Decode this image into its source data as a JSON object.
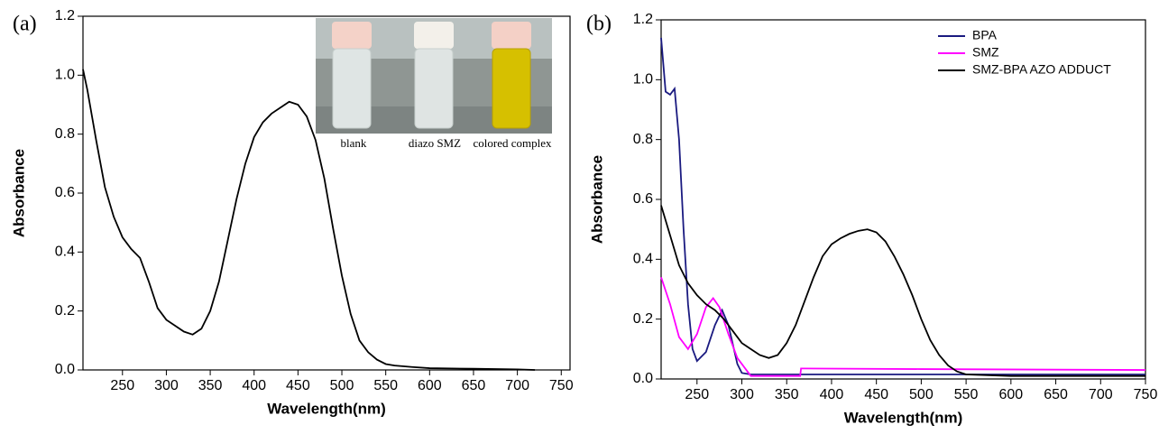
{
  "chart_data": [
    {
      "type": "line",
      "panel_label": "(a)",
      "x_label": "Wavelength(nm)",
      "y_label": "Absorbance",
      "inset_captions": [
        "blank",
        "diazo SMZ",
        "colored complex"
      ],
      "color": "#000000",
      "x": [
        205,
        210,
        220,
        230,
        240,
        250,
        260,
        270,
        280,
        290,
        300,
        310,
        320,
        330,
        340,
        350,
        360,
        370,
        380,
        390,
        400,
        410,
        420,
        430,
        440,
        450,
        460,
        470,
        480,
        490,
        500,
        510,
        520,
        530,
        540,
        550,
        560,
        580,
        600,
        650,
        700,
        720
      ],
      "values": [
        1.02,
        0.95,
        0.78,
        0.62,
        0.52,
        0.45,
        0.41,
        0.38,
        0.3,
        0.21,
        0.17,
        0.15,
        0.13,
        0.12,
        0.14,
        0.2,
        0.3,
        0.44,
        0.58,
        0.7,
        0.79,
        0.84,
        0.87,
        0.89,
        0.91,
        0.9,
        0.86,
        0.78,
        0.65,
        0.48,
        0.32,
        0.19,
        0.1,
        0.06,
        0.035,
        0.02,
        0.015,
        0.01,
        0.006,
        0.004,
        0.002,
        0.0
      ],
      "xlim": [
        205,
        760
      ],
      "ylim": [
        0,
        1.2
      ],
      "xticks": [
        250,
        300,
        350,
        400,
        450,
        500,
        550,
        600,
        650,
        700,
        750
      ],
      "yticks": [
        {
          "value": 0,
          "label": "0.0"
        },
        {
          "value": 0.2,
          "label": "0.2"
        },
        {
          "value": 0.4,
          "label": "0.4"
        },
        {
          "value": 0.6,
          "label": "0.6"
        },
        {
          "value": 0.8,
          "label": "0.8"
        },
        {
          "value": 1,
          "label": "1.0"
        },
        {
          "value": 1.2,
          "label": "1.2"
        }
      ]
    },
    {
      "type": "line",
      "panel_label": "(b)",
      "x_label": "Wavelength(nm)",
      "y_label": "Absorbance",
      "series": [
        {
          "name": "BPA",
          "color": "#1a1a80",
          "x": [
            210,
            215,
            220,
            225,
            230,
            235,
            240,
            245,
            250,
            260,
            270,
            278,
            285,
            295,
            300,
            310,
            350,
            365,
            400,
            500,
            600,
            750
          ],
          "values": [
            1.14,
            0.96,
            0.95,
            0.97,
            0.8,
            0.5,
            0.25,
            0.1,
            0.06,
            0.09,
            0.18,
            0.23,
            0.18,
            0.05,
            0.02,
            0.015,
            0.015,
            0.015,
            0.015,
            0.015,
            0.015,
            0.015
          ]
        },
        {
          "name": "SMZ",
          "color": "#ff00ff",
          "x": [
            210,
            220,
            230,
            240,
            250,
            260,
            268,
            275,
            285,
            295,
            305,
            310,
            365,
            366,
            500,
            750
          ],
          "values": [
            0.34,
            0.25,
            0.14,
            0.1,
            0.15,
            0.24,
            0.27,
            0.24,
            0.15,
            0.07,
            0.03,
            0.01,
            0.01,
            0.035,
            0.033,
            0.03
          ]
        },
        {
          "name": "SMZ-BPA AZO ADDUCT",
          "color": "#000000",
          "x": [
            210,
            220,
            230,
            240,
            250,
            260,
            270,
            280,
            290,
            300,
            310,
            320,
            330,
            340,
            350,
            360,
            370,
            380,
            390,
            400,
            410,
            420,
            430,
            440,
            450,
            460,
            470,
            480,
            490,
            500,
            510,
            520,
            530,
            540,
            550,
            600,
            750
          ],
          "values": [
            0.58,
            0.48,
            0.38,
            0.32,
            0.28,
            0.25,
            0.23,
            0.2,
            0.16,
            0.12,
            0.1,
            0.08,
            0.07,
            0.08,
            0.12,
            0.18,
            0.26,
            0.34,
            0.41,
            0.45,
            0.47,
            0.485,
            0.495,
            0.5,
            0.49,
            0.46,
            0.41,
            0.35,
            0.28,
            0.2,
            0.13,
            0.08,
            0.045,
            0.025,
            0.015,
            0.01,
            0.01
          ]
        }
      ],
      "xlim": [
        210,
        750
      ],
      "ylim": [
        0,
        1.2
      ],
      "xticks": [
        250,
        300,
        350,
        400,
        450,
        500,
        550,
        600,
        650,
        700,
        750
      ],
      "yticks": [
        {
          "value": 0,
          "label": "0.0"
        },
        {
          "value": 0.2,
          "label": "0.2"
        },
        {
          "value": 0.4,
          "label": "0.4"
        },
        {
          "value": 0.6,
          "label": "0.6"
        },
        {
          "value": 0.8,
          "label": "0.8"
        },
        {
          "value": 1,
          "label": "1.0"
        },
        {
          "value": 1.2,
          "label": "1.2"
        }
      ]
    }
  ]
}
